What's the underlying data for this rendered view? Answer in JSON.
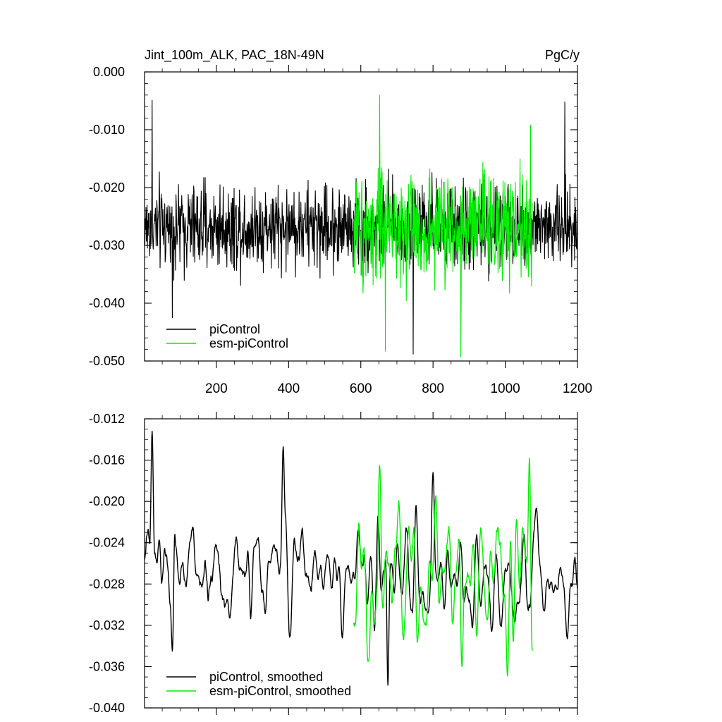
{
  "chart_data": [
    {
      "type": "line",
      "title": "Jint_100m_ALK, PAC_18N-49N",
      "units": "PgC/y",
      "xlim": [
        1,
        1200
      ],
      "ylim": [
        -0.05,
        0.0
      ],
      "xticks": [
        200,
        400,
        600,
        800,
        1000,
        1200
      ],
      "xtick_labels": [
        "200",
        "400",
        "600",
        "800",
        "1000",
        "1200"
      ],
      "yticks": [
        0.0,
        -0.01,
        -0.02,
        -0.03,
        -0.04,
        -0.05
      ],
      "ytick_labels": [
        "0.000",
        "-0.010",
        "-0.020",
        "-0.030",
        "-0.040",
        "-0.050"
      ],
      "legend_position": "bottom-left",
      "series": [
        {
          "name": "piControl",
          "color": "#000000",
          "x_start": 1,
          "x_end": 1200,
          "mean": -0.0268,
          "amplitude": 0.0052,
          "noted_extremes": [
            {
              "x": 22,
              "y": -0.0049
            },
            {
              "x": 745,
              "y": -0.0488
            },
            {
              "x": 1165,
              "y": -0.0052
            },
            {
              "x": 78,
              "y": -0.0425
            }
          ]
        },
        {
          "name": "esm-piControl",
          "color": "#00ee00",
          "x_start": 580,
          "x_end": 1075,
          "mean": -0.0272,
          "amplitude": 0.0068,
          "noted_extremes": [
            {
              "x": 652,
              "y": -0.004
            },
            {
              "x": 877,
              "y": -0.0493
            },
            {
              "x": 668,
              "y": -0.0483
            },
            {
              "x": 1070,
              "y": -0.0092
            }
          ]
        }
      ]
    },
    {
      "type": "line",
      "xlim": [
        1,
        1200
      ],
      "ylim": [
        -0.04,
        -0.012
      ],
      "xticks": [
        200,
        400,
        600,
        800,
        1000,
        1200
      ],
      "yticks": [
        -0.012,
        -0.016,
        -0.02,
        -0.024,
        -0.028,
        -0.032,
        -0.036,
        -0.04
      ],
      "ytick_labels": [
        "-0.012",
        "-0.016",
        "-0.020",
        "-0.024",
        "-0.028",
        "-0.032",
        "-0.036",
        "-0.040"
      ],
      "legend_position": "bottom-left",
      "series": [
        {
          "name": "piControl, smoothed",
          "color": "#000000",
          "x_start": 1,
          "x_end": 1200,
          "mean": -0.0268,
          "amplitude": 0.0024,
          "noted_extremes": [
            {
              "x": 22,
              "y": -0.0132
            },
            {
              "x": 385,
              "y": -0.0147
            },
            {
              "x": 800,
              "y": -0.0172
            },
            {
              "x": 675,
              "y": -0.0378
            },
            {
              "x": 78,
              "y": -0.0345
            }
          ]
        },
        {
          "name": "esm-piControl, smoothed",
          "color": "#00ee00",
          "x_start": 580,
          "x_end": 1075,
          "mean": -0.0268,
          "amplitude": 0.0034,
          "noted_extremes": [
            {
              "x": 652,
              "y": -0.0165
            },
            {
              "x": 1067,
              "y": -0.0158
            },
            {
              "x": 880,
              "y": -0.036
            },
            {
              "x": 620,
              "y": -0.0355
            }
          ]
        }
      ]
    }
  ]
}
